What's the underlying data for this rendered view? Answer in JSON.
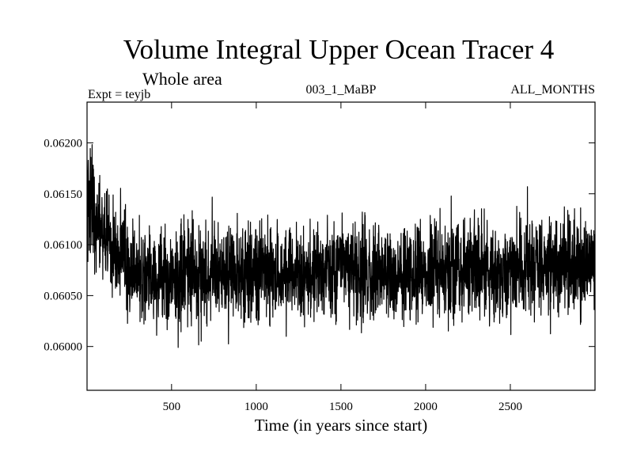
{
  "chart_data": {
    "type": "line",
    "title": "Volume Integral Upper Ocean Tracer 4",
    "subtitle": "Whole area",
    "experiment_label": "Expt = teyjb",
    "run_label": "003_1_MaBP",
    "period_label": "ALL_MONTHS",
    "xlabel": "Time (in years since start)",
    "ylabel": "",
    "xlim": [
      1,
      3000
    ],
    "ylim": [
      0.05957,
      0.0624
    ],
    "x_ticks": [
      500,
      1000,
      1500,
      2000,
      2500
    ],
    "x_tick_labels": [
      "500",
      "1000",
      "1500",
      "2000",
      "2500"
    ],
    "y_ticks": [
      0.06,
      0.0605,
      0.061,
      0.0615,
      0.062
    ],
    "y_tick_labels": [
      "0.06000",
      "0.06050",
      "0.06100",
      "0.06150",
      "0.06200"
    ],
    "series": [
      {
        "name": "Upper Ocean Tracer 4",
        "color": "#000000",
        "x": [
          1,
          150,
          300,
          450,
          600,
          750,
          900,
          1050,
          1200,
          1350,
          1500,
          1650,
          1800,
          1950,
          2100,
          2250,
          2400,
          2550,
          2700,
          2850,
          3000
        ],
        "values": [
          0.06145,
          0.06095,
          0.06072,
          0.06068,
          0.06072,
          0.0607,
          0.06072,
          0.06072,
          0.06068,
          0.0607,
          0.0608,
          0.06072,
          0.0607,
          0.06072,
          0.06078,
          0.0608,
          0.06075,
          0.0608,
          0.06078,
          0.06082,
          0.0608
        ],
        "noise_amplitude": 0.0008,
        "sample_count": 3000
      }
    ]
  }
}
